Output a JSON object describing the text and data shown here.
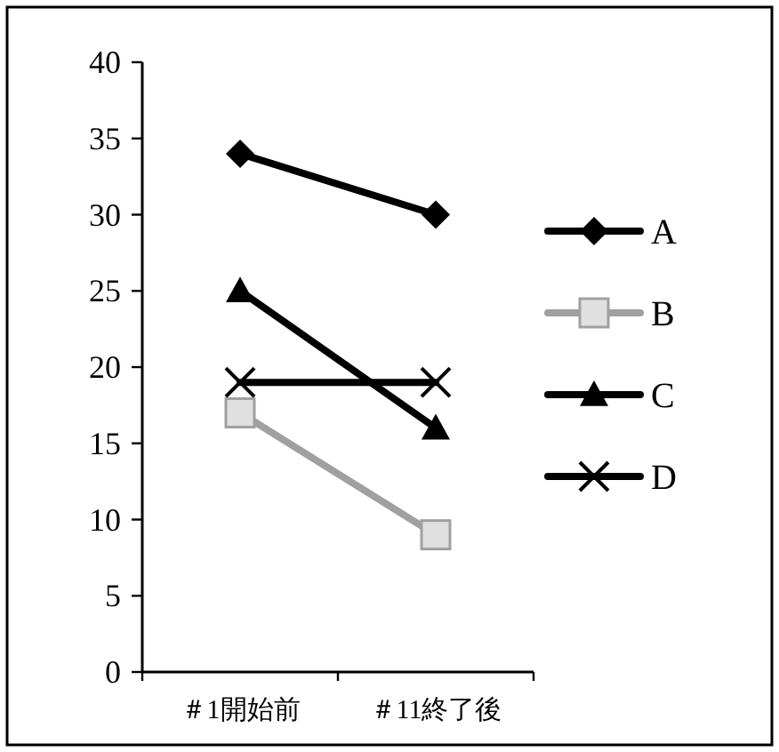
{
  "chart_data": {
    "type": "line",
    "categories": [
      "＃1開始前",
      "＃11終了後"
    ],
    "series": [
      {
        "name": "A",
        "color": "#000000",
        "marker": "diamond",
        "values": [
          34,
          30
        ]
      },
      {
        "name": "B",
        "color": "#a0a0a0",
        "marker": "square",
        "values": [
          17,
          9
        ]
      },
      {
        "name": "C",
        "color": "#000000",
        "marker": "triangle",
        "values": [
          25,
          16
        ]
      },
      {
        "name": "D",
        "color": "#000000",
        "marker": "cross",
        "values": [
          19,
          19
        ]
      }
    ],
    "ylim": [
      0,
      40
    ],
    "yticks": [
      0,
      5,
      10,
      15,
      20,
      25,
      30,
      35,
      40
    ],
    "grid": false,
    "legend": "right",
    "line_style": "solid"
  }
}
